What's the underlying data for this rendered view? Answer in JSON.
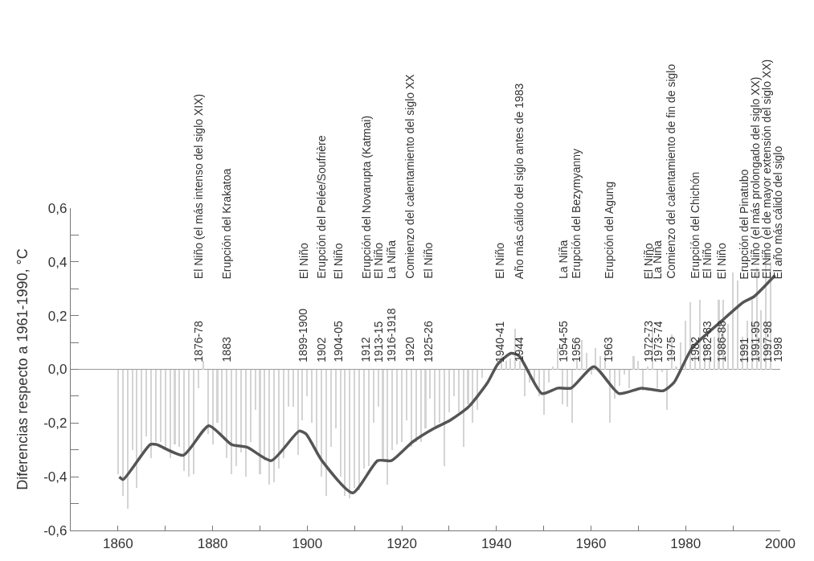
{
  "chart_data": {
    "type": "bar",
    "ylabel": "Diferencias respecto a 1961-1990, °C",
    "xlim": [
      1850,
      2000
    ],
    "xticks": [
      1860,
      {
        "value": 1870,
        "label": null
      },
      1880,
      {
        "value": 1890,
        "label": null
      },
      1900,
      {
        "value": 1910,
        "label": null
      },
      1920,
      {
        "value": 1930,
        "label": null
      },
      1940,
      {
        "value": 1950,
        "label": null
      },
      1960,
      {
        "value": 1970,
        "label": null
      },
      1980,
      {
        "value": 1990,
        "label": null
      },
      2000
    ],
    "ylim": [
      -0.6,
      0.6
    ],
    "yticks": [
      {
        "value": -0.6,
        "label": "-0,6"
      },
      {
        "value": -0.5,
        "label": null
      },
      {
        "value": -0.4,
        "label": "-0,4"
      },
      {
        "value": -0.3,
        "label": null
      },
      {
        "value": -0.2,
        "label": "-0,2"
      },
      {
        "value": -0.1,
        "label": null
      },
      {
        "value": 0,
        "label": "0,0"
      },
      {
        "value": 0.1,
        "label": null
      },
      {
        "value": 0.2,
        "label": "0,2"
      },
      {
        "value": 0.3,
        "label": null
      },
      {
        "value": 0.4,
        "label": "0,4"
      },
      {
        "value": 0.5,
        "label": null
      },
      {
        "value": 0.6,
        "label": "0,6"
      }
    ],
    "grid": false,
    "ref_lines": [
      {
        "axis": "y",
        "value": 0,
        "label": null,
        "color": "#9a9a9a"
      }
    ],
    "series": [
      {
        "color": "#d4d4d4",
        "x": [
          1860,
          1861,
          1862,
          1863,
          1864,
          1865,
          1866,
          1867,
          1868,
          1869,
          1870,
          1871,
          1872,
          1873,
          1874,
          1875,
          1876,
          1877,
          1878,
          1879,
          1880,
          1881,
          1882,
          1883,
          1884,
          1885,
          1886,
          1887,
          1888,
          1889,
          1890,
          1891,
          1892,
          1893,
          1894,
          1895,
          1896,
          1897,
          1898,
          1899,
          1900,
          1901,
          1902,
          1903,
          1904,
          1905,
          1906,
          1907,
          1908,
          1909,
          1910,
          1911,
          1912,
          1913,
          1914,
          1915,
          1916,
          1917,
          1918,
          1919,
          1920,
          1921,
          1922,
          1923,
          1924,
          1925,
          1926,
          1927,
          1928,
          1929,
          1930,
          1931,
          1932,
          1933,
          1934,
          1935,
          1936,
          1937,
          1938,
          1939,
          1940,
          1941,
          1942,
          1943,
          1944,
          1945,
          1946,
          1947,
          1948,
          1949,
          1950,
          1951,
          1952,
          1953,
          1954,
          1955,
          1956,
          1957,
          1958,
          1959,
          1960,
          1961,
          1962,
          1963,
          1964,
          1965,
          1966,
          1967,
          1968,
          1969,
          1970,
          1971,
          1972,
          1973,
          1974,
          1975,
          1976,
          1977,
          1978,
          1979,
          1980,
          1981,
          1982,
          1983,
          1984,
          1985,
          1986,
          1987,
          1988,
          1989,
          1990,
          1991,
          1992,
          1993,
          1994,
          1995,
          1996,
          1997,
          1998
        ],
        "values": [
          -0.39,
          -0.47,
          -0.52,
          -0.3,
          -0.44,
          -0.31,
          -0.25,
          -0.33,
          -0.27,
          -0.27,
          -0.3,
          -0.33,
          -0.28,
          -0.29,
          -0.38,
          -0.4,
          -0.39,
          -0.07,
          0.03,
          -0.24,
          -0.28,
          -0.2,
          -0.25,
          -0.33,
          -0.39,
          -0.36,
          -0.31,
          -0.4,
          -0.27,
          -0.15,
          -0.39,
          -0.34,
          -0.43,
          -0.42,
          -0.37,
          -0.33,
          -0.14,
          -0.14,
          -0.32,
          -0.19,
          -0.1,
          -0.2,
          -0.32,
          -0.4,
          -0.47,
          -0.29,
          -0.22,
          -0.4,
          -0.47,
          -0.48,
          -0.44,
          -0.45,
          -0.37,
          -0.36,
          -0.2,
          -0.14,
          -0.34,
          -0.43,
          -0.3,
          -0.28,
          -0.27,
          -0.19,
          -0.29,
          -0.27,
          -0.27,
          -0.22,
          -0.11,
          -0.21,
          -0.2,
          -0.36,
          -0.16,
          -0.1,
          -0.16,
          -0.29,
          -0.13,
          -0.2,
          -0.15,
          -0.03,
          0.0,
          null,
          null,
          0.05,
          0.03,
          0.04,
          0.15,
          0.03,
          -0.1,
          -0.05,
          -0.05,
          -0.1,
          -0.17,
          -0.05,
          0.01,
          0.08,
          -0.13,
          -0.14,
          -0.2,
          0.04,
          0.11,
          0.06,
          -0.02,
          0.08,
          0.05,
          0.07,
          -0.2,
          -0.11,
          -0.06,
          -0.02,
          -0.07,
          0.05,
          0.03,
          -0.08,
          0.01,
          0.16,
          -0.07,
          -0.01,
          -0.15,
          0.13,
          0.01,
          0.1,
          0.18,
          0.25,
          0.05,
          0.26,
          0.09,
          0.05,
          0.12,
          0.26,
          0.26,
          0.17,
          0.36,
          0.33,
          0.12,
          0.18,
          0.26,
          0.38,
          0.22,
          0.43,
          0.4
        ]
      },
      {
        "type": "line",
        "color": "#555555",
        "marker": "none",
        "line_style": "solid",
        "x": [
          1860.3,
          1861.1,
          1866.8,
          1868.1,
          1873.8,
          1879.2,
          1884.0,
          1887.3,
          1892.4,
          1898.3,
          1899.7,
          1903.1,
          1909.6,
          1914.9,
          1917.8,
          1922.3,
          1926.8,
          1930.2,
          1934.1,
          1938.1,
          1940.3,
          1943.1,
          1944.8,
          1949.6,
          1953.0,
          1955.8,
          1960.6,
          1965.9,
          1970.7,
          1975.2,
          1977.5,
          1981.4,
          1987.6,
          1992.2,
          1994.4,
          1998.9
        ],
        "values": [
          -0.4,
          -0.41,
          -0.28,
          -0.28,
          -0.32,
          -0.21,
          -0.28,
          -0.29,
          -0.34,
          -0.23,
          -0.24,
          -0.34,
          -0.46,
          -0.34,
          -0.34,
          -0.27,
          -0.22,
          -0.19,
          -0.14,
          -0.05,
          0.02,
          0.06,
          0.05,
          -0.09,
          -0.07,
          -0.07,
          0.01,
          -0.09,
          -0.07,
          -0.08,
          -0.05,
          0.08,
          0.18,
          0.25,
          0.27,
          0.35
        ]
      }
    ],
    "annotations": [
      "El Niño (el más intenso del siglo XIX)",
      "Erupción del Krakatoa",
      "El Niño",
      "Erupción del Pelée/Soufrière",
      "El Niño",
      "Erupción del Novarupta (Katmai)",
      "El Niño",
      "La Niña",
      "Comienzo del calentamiento del siglo XX",
      "El Niño",
      "El Niño",
      "Año más cálido del siglo antes de 1983",
      "La Niña",
      "Erupción del Bezymyanny",
      "Erupción del Agung",
      "El Niño",
      "La Niña",
      "Comienzo del calentamiento de fin de siglo",
      "Erupción del Chichón",
      "El Niño",
      "El Niño",
      "Erupción del Pinatubo",
      "El Niño (el más prolongado del siglo XX)",
      "El Niño (el de mayor extensión del siglo XX)",
      "El año más cálido del siglo",
      "1876-78",
      "1883",
      "1899-1900",
      "1902",
      "1904-05",
      "1912",
      "1913-15",
      "1916-1918",
      "1920",
      "1925-26",
      "1940-41",
      "1944",
      "1954-55",
      "1956",
      "1963",
      "1972-73",
      "1973-74",
      "1975",
      "1982",
      "1982-83",
      "1986-88",
      "1991",
      "1991-95",
      "1997-98",
      "1998"
    ]
  }
}
